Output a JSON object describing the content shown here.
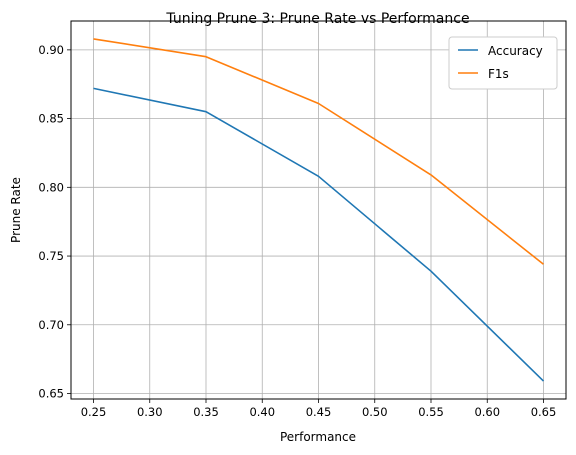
{
  "chart_data": {
    "type": "line",
    "title": "Tuning Prune 3: Prune Rate vs Performance",
    "xlabel": "Performance",
    "ylabel": "Prune Rate",
    "x": [
      0.25,
      0.35,
      0.45,
      0.55,
      0.65
    ],
    "series": [
      {
        "name": "Accuracy",
        "color": "#1f77b4",
        "values": [
          0.872,
          0.855,
          0.808,
          0.739,
          0.659
        ]
      },
      {
        "name": "F1s",
        "color": "#ff7f0e",
        "values": [
          0.908,
          0.895,
          0.861,
          0.809,
          0.744
        ]
      }
    ],
    "xlim": [
      0.23,
      0.67
    ],
    "ylim": [
      0.646,
      0.921
    ],
    "xticks": [
      "0.25",
      "0.30",
      "0.35",
      "0.40",
      "0.45",
      "0.50",
      "0.55",
      "0.60",
      "0.65"
    ],
    "yticks": [
      "0.65",
      "0.70",
      "0.75",
      "0.80",
      "0.85",
      "0.90"
    ],
    "grid": true,
    "legend_position": "top-right"
  }
}
